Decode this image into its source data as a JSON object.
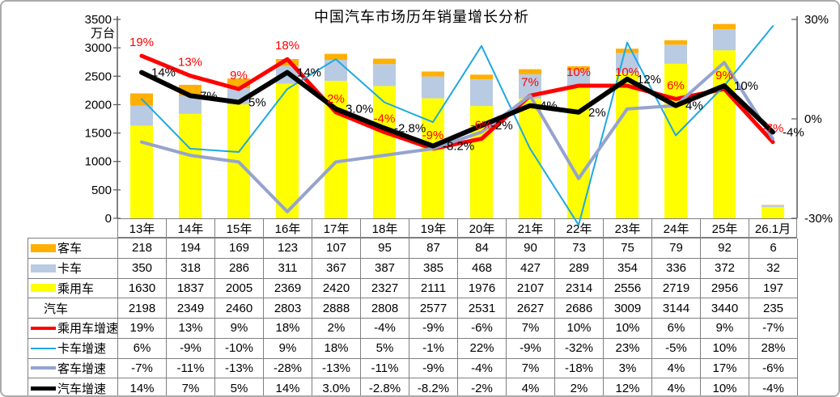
{
  "title": "中国汽车市场历年销量增长分析",
  "chart_data": {
    "type": "combo",
    "title": "中国汽车市场历年销量增长分析",
    "legend_position": "table-left",
    "grid": false,
    "categories": [
      "13年",
      "14年",
      "15年",
      "16年",
      "17年",
      "18年",
      "19年",
      "20年",
      "21年",
      "22年",
      "23年",
      "24年",
      "25年",
      "26.1月"
    ],
    "y_left": {
      "unit": "万台",
      "min": 0,
      "max": 3500,
      "tick_step": 500,
      "ticks": [
        {
          "label": "3500",
          "value": 3500
        },
        {
          "label": "3000",
          "value": 3000
        },
        {
          "label": "2500",
          "value": 2500
        },
        {
          "label": "2000",
          "value": 2000
        },
        {
          "label": "1500",
          "value": 1500
        },
        {
          "label": "1000",
          "value": 1000
        },
        {
          "label": "500",
          "value": 500
        },
        {
          "label": "0",
          "value": 0
        }
      ]
    },
    "y_right": {
      "min": -30,
      "max": 30,
      "format": "percent",
      "ticks": [
        {
          "label": "30%",
          "value": 30
        },
        {
          "label": "0%",
          "value": 0
        },
        {
          "label": "-30%",
          "value": -30
        }
      ]
    },
    "bar_stack": [
      {
        "name": "乘用车",
        "color": "#FFFF00",
        "values": [
          1630,
          1837,
          2005,
          2369,
          2420,
          2327,
          2111,
          1976,
          2107,
          2314,
          2556,
          2719,
          2956,
          197
        ]
      },
      {
        "name": "卡车",
        "color": "#B9CBE2",
        "values": [
          350,
          318,
          286,
          311,
          367,
          387,
          385,
          468,
          427,
          289,
          354,
          336,
          372,
          32
        ]
      },
      {
        "name": "客车",
        "color": "#FFB000",
        "values": [
          218,
          194,
          169,
          123,
          107,
          95,
          87,
          84,
          90,
          73,
          75,
          79,
          92,
          6
        ]
      }
    ],
    "total_series": {
      "name": "汽车",
      "values": [
        2198,
        2349,
        2460,
        2803,
        2888,
        2808,
        2577,
        2531,
        2627,
        2686,
        3009,
        3144,
        3440,
        235
      ]
    },
    "lines": [
      {
        "name": "乘用车增速",
        "color": "#FF0000",
        "width": 5,
        "values_pct": [
          19,
          13,
          9,
          18,
          2,
          -4,
          -9,
          -6,
          7,
          10,
          10,
          6,
          9,
          -7
        ],
        "labels": [
          "19%",
          "13%",
          "9%",
          "18%",
          "2%",
          "-4%",
          "-9%",
          "-6%",
          "7%",
          "10%",
          "10%",
          "6%",
          "9%",
          "-7%"
        ],
        "label_color": "#FF0000",
        "label_pos": "above"
      },
      {
        "name": "卡车增速",
        "color": "#1FA8E0",
        "width": 2,
        "values_pct": [
          6,
          -9,
          -10,
          9,
          18,
          5,
          -1,
          22,
          -9,
          -32,
          23,
          -5,
          10,
          28
        ]
      },
      {
        "name": "客车增速",
        "color": "#95A3CD",
        "width": 4,
        "values_pct": [
          -7,
          -11,
          -13,
          -28,
          -13,
          -11,
          -9,
          -4,
          7,
          -18,
          3,
          4,
          17,
          -6
        ]
      },
      {
        "name": "汽车增速",
        "color": "#000000",
        "width": 6,
        "values_pct": [
          14,
          7,
          5,
          14,
          3,
          -2.8,
          -8.2,
          -2,
          4,
          2,
          12,
          4,
          10,
          -4
        ],
        "labels": [
          "14%",
          "7%",
          "5%",
          "14%",
          "3.0%",
          "-2.8%",
          "-8.2%",
          "-2%",
          "4%",
          "2%",
          "12%",
          "4%",
          "10%",
          "-4%"
        ],
        "label_color": "#000000",
        "label_pos": "right"
      }
    ]
  },
  "table": {
    "rows": [
      {
        "label": "客车",
        "key": {
          "kind": "bar",
          "color": "#FFB000"
        },
        "values": [
          "218",
          "194",
          "169",
          "123",
          "107",
          "95",
          "87",
          "84",
          "90",
          "73",
          "75",
          "79",
          "92",
          "6"
        ]
      },
      {
        "label": "卡车",
        "key": {
          "kind": "bar",
          "color": "#B9CBE2"
        },
        "values": [
          "350",
          "318",
          "286",
          "311",
          "367",
          "387",
          "385",
          "468",
          "427",
          "289",
          "354",
          "336",
          "372",
          "32"
        ]
      },
      {
        "label": "乘用车",
        "key": {
          "kind": "bar",
          "color": "#FFFF00"
        },
        "values": [
          "1630",
          "1837",
          "2005",
          "2369",
          "2420",
          "2327",
          "2111",
          "1976",
          "2107",
          "2314",
          "2556",
          "2719",
          "2956",
          "197"
        ]
      },
      {
        "label": "汽车",
        "key": {
          "kind": "none"
        },
        "values": [
          "2198",
          "2349",
          "2460",
          "2803",
          "2888",
          "2808",
          "2577",
          "2531",
          "2627",
          "2686",
          "3009",
          "3144",
          "3440",
          "235"
        ]
      },
      {
        "label": "乘用车增速",
        "key": {
          "kind": "line",
          "color": "#FF0000",
          "thick": 4
        },
        "values": [
          "19%",
          "13%",
          "9%",
          "18%",
          "2%",
          "-4%",
          "-9%",
          "-6%",
          "7%",
          "10%",
          "10%",
          "6%",
          "9%",
          "-7%"
        ]
      },
      {
        "label": "卡车增速",
        "key": {
          "kind": "line",
          "color": "#1FA8E0",
          "thick": 2
        },
        "values": [
          "6%",
          "-9%",
          "-10%",
          "9%",
          "18%",
          "5%",
          "-1%",
          "22%",
          "-9%",
          "-32%",
          "23%",
          "-5%",
          "10%",
          "28%"
        ]
      },
      {
        "label": "客车增速",
        "key": {
          "kind": "line",
          "color": "#95A3CD",
          "thick": 4
        },
        "values": [
          "-7%",
          "-11%",
          "-13%",
          "-28%",
          "-13%",
          "-11%",
          "-9%",
          "-4%",
          "7%",
          "-18%",
          "3%",
          "4%",
          "17%",
          "-6%"
        ]
      },
      {
        "label": "汽车增速",
        "key": {
          "kind": "line",
          "color": "#000000",
          "thick": 5
        },
        "values": [
          "14%",
          "7%",
          "5%",
          "14%",
          "3.0%",
          "-2.8%",
          "-8.2%",
          "-2%",
          "4%",
          "2%",
          "12%",
          "4%",
          "10%",
          "-4%"
        ]
      }
    ]
  }
}
